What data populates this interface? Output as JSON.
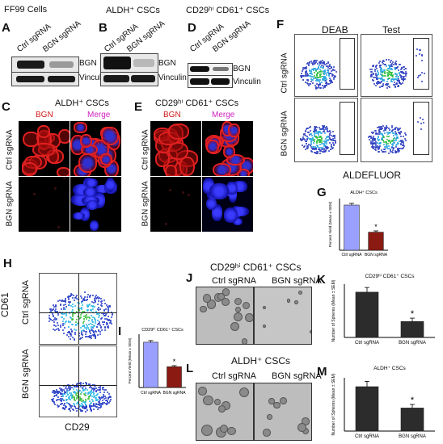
{
  "panels": {
    "A": {
      "letter": "A",
      "header": "FF99 Cells",
      "lanes": [
        "Ctrl sgRNA",
        "BGN sgRNA"
      ],
      "bands": [
        "BGN",
        "Vinculin"
      ]
    },
    "B": {
      "letter": "B",
      "header": "ALDH⁺ CSCs",
      "lanes": [
        "Ctrl sgRNA",
        "BGN sgRNA"
      ],
      "bands": [
        "BGN",
        "Vinculin"
      ]
    },
    "D": {
      "letter": "D",
      "header": "CD29ʰⁱ CD61⁺ CSCs",
      "lanes": [
        "Ctrl sgRNA",
        "BGN sgRNA"
      ],
      "bands": [
        "BGN",
        "Vinculin"
      ]
    },
    "C": {
      "letter": "C",
      "header": "ALDH⁺ CSCs",
      "cols": [
        "BGN",
        "Merge"
      ],
      "rows": [
        "Ctrl sgRNA",
        "BGN sgRNA"
      ]
    },
    "E": {
      "letter": "E",
      "header": "CD29ʰⁱ CD61⁺ CSCs",
      "cols": [
        "BGN",
        "Merge"
      ],
      "rows": [
        "Ctrl sgRNA",
        "BGN sgRNA"
      ]
    },
    "F": {
      "letter": "F",
      "cols": [
        "DEAB",
        "Test"
      ],
      "rows": [
        "Ctrl sgRNA",
        "BGN sgRNA"
      ],
      "xlabel": "ALDEFLUOR"
    },
    "G": {
      "letter": "G",
      "title": "ALDH⁺ CSCs",
      "ylabel": "Percent Yield (Mean ± SEM)",
      "sig": "*"
    },
    "H": {
      "letter": "H",
      "rows": [
        "Ctrl sgRNA",
        "BGN sgRNA"
      ],
      "ylabel": "CD61",
      "xlabel": "CD29"
    },
    "I": {
      "letter": "I",
      "title": "CD29ʰⁱ CD61⁺ CSCs",
      "ylabel": "Percent Yield (Mean ± SEM)",
      "sig": "*"
    },
    "J": {
      "letter": "J",
      "header": "CD29ʰⁱ CD61⁺ CSCs",
      "cols": [
        "Ctrl sgRNA",
        "BGN sgRNA"
      ]
    },
    "K": {
      "letter": "K",
      "title": "CD29ʰⁱ CD61⁺ CSCs",
      "ylabel": "Number of Spheres (Mean ± SEM)",
      "sig": "*"
    },
    "L": {
      "letter": "L",
      "header": "ALDH⁺ CSCs",
      "cols": [
        "Ctrl sgRNA",
        "BGN sgRNA"
      ]
    },
    "M": {
      "letter": "M",
      "title": "ALDH⁺ CSCs",
      "ylabel": "Number of Spheres (Mean ± SEM)",
      "sig": "*"
    }
  },
  "colors": {
    "red": "#d01818",
    "magenta": "#d020c0",
    "blue_bar": "#9aa0ff",
    "darkred_bar": "#8b1a12",
    "dark_bar": "#2c2c2c"
  },
  "chart_data": [
    {
      "type": "bar",
      "panel": "G",
      "categories": [
        "Ctrl sgRNA",
        "BGN sgRNA"
      ],
      "values": [
        10.5,
        4.2
      ],
      "errors": [
        0.4,
        0.3
      ],
      "title": "ALDH⁺ CSCs",
      "ylabel": "Percent Yield (Mean ± SEM)",
      "ylim": [
        0,
        12
      ]
    },
    {
      "type": "bar",
      "panel": "I",
      "categories": [
        "Ctrl sgRNA",
        "BGN sgRNA"
      ],
      "values": [
        8.5,
        3.9
      ],
      "errors": [
        0.3,
        0.2
      ],
      "title": "CD29ʰⁱ CD61⁺ CSCs",
      "ylabel": "Percent Yield (Mean ± SEM)",
      "ylim": [
        0,
        10
      ]
    },
    {
      "type": "bar",
      "panel": "K",
      "categories": [
        "Ctrl sgRNA",
        "BGN sgRNA"
      ],
      "values": [
        34,
        12
      ],
      "errors": [
        3.5,
        2.5
      ],
      "title": "CD29ʰⁱ CD61⁺ CSCs",
      "ylabel": "Number of Spheres (Mean ± SEM)",
      "ylim": [
        0,
        40
      ]
    },
    {
      "type": "bar",
      "panel": "M",
      "categories": [
        "Ctrl sgRNA",
        "BGN sgRNA"
      ],
      "values": [
        25,
        13
      ],
      "errors": [
        3,
        2
      ],
      "title": "ALDH⁺ CSCs",
      "ylabel": "Number of Spheres (Mean ± SEM)",
      "ylim": [
        0,
        30
      ]
    }
  ]
}
